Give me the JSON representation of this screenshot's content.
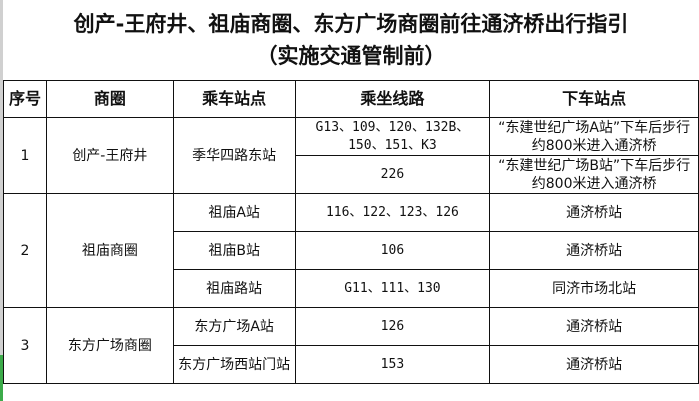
{
  "title": {
    "line1": "创产-王府井、祖庙商圈、东方广场商圈前往通济桥出行指引",
    "line2": "（实施交通管制前）"
  },
  "headers": [
    "序号",
    "商圈",
    "乘车站点",
    "乘坐线路",
    "下车站点"
  ],
  "groups": [
    {
      "no": "1",
      "area": "创产-王府井",
      "stops": [
        {
          "stop": "季华四路东站",
          "routes": [
            {
              "lines": "G13、109、120、132B、150、151、K3",
              "alight": "“东建世纪广场A站”下车后步行约800米进入通济桥"
            },
            {
              "lines": "226",
              "alight": "“东建世纪广场B站”下车后步行约800米进入通济桥"
            }
          ]
        }
      ]
    },
    {
      "no": "2",
      "area": "祖庙商圈",
      "stops": [
        {
          "stop": "祖庙A站",
          "routes": [
            {
              "lines": "116、122、123、126",
              "alight": "通济桥站"
            }
          ]
        },
        {
          "stop": "祖庙B站",
          "routes": [
            {
              "lines": "106",
              "alight": "通济桥站"
            }
          ]
        },
        {
          "stop": "祖庙路站",
          "routes": [
            {
              "lines": "G11、111、130",
              "alight": "同济市场北站"
            }
          ]
        }
      ]
    },
    {
      "no": "3",
      "area": "东方广场商圈",
      "stops": [
        {
          "stop": "东方广场A站",
          "routes": [
            {
              "lines": "126",
              "alight": "通济桥站"
            }
          ]
        },
        {
          "stop": "东方广场西站门站",
          "routes": [
            {
              "lines": "153",
              "alight": "通济桥站"
            }
          ]
        }
      ]
    }
  ]
}
